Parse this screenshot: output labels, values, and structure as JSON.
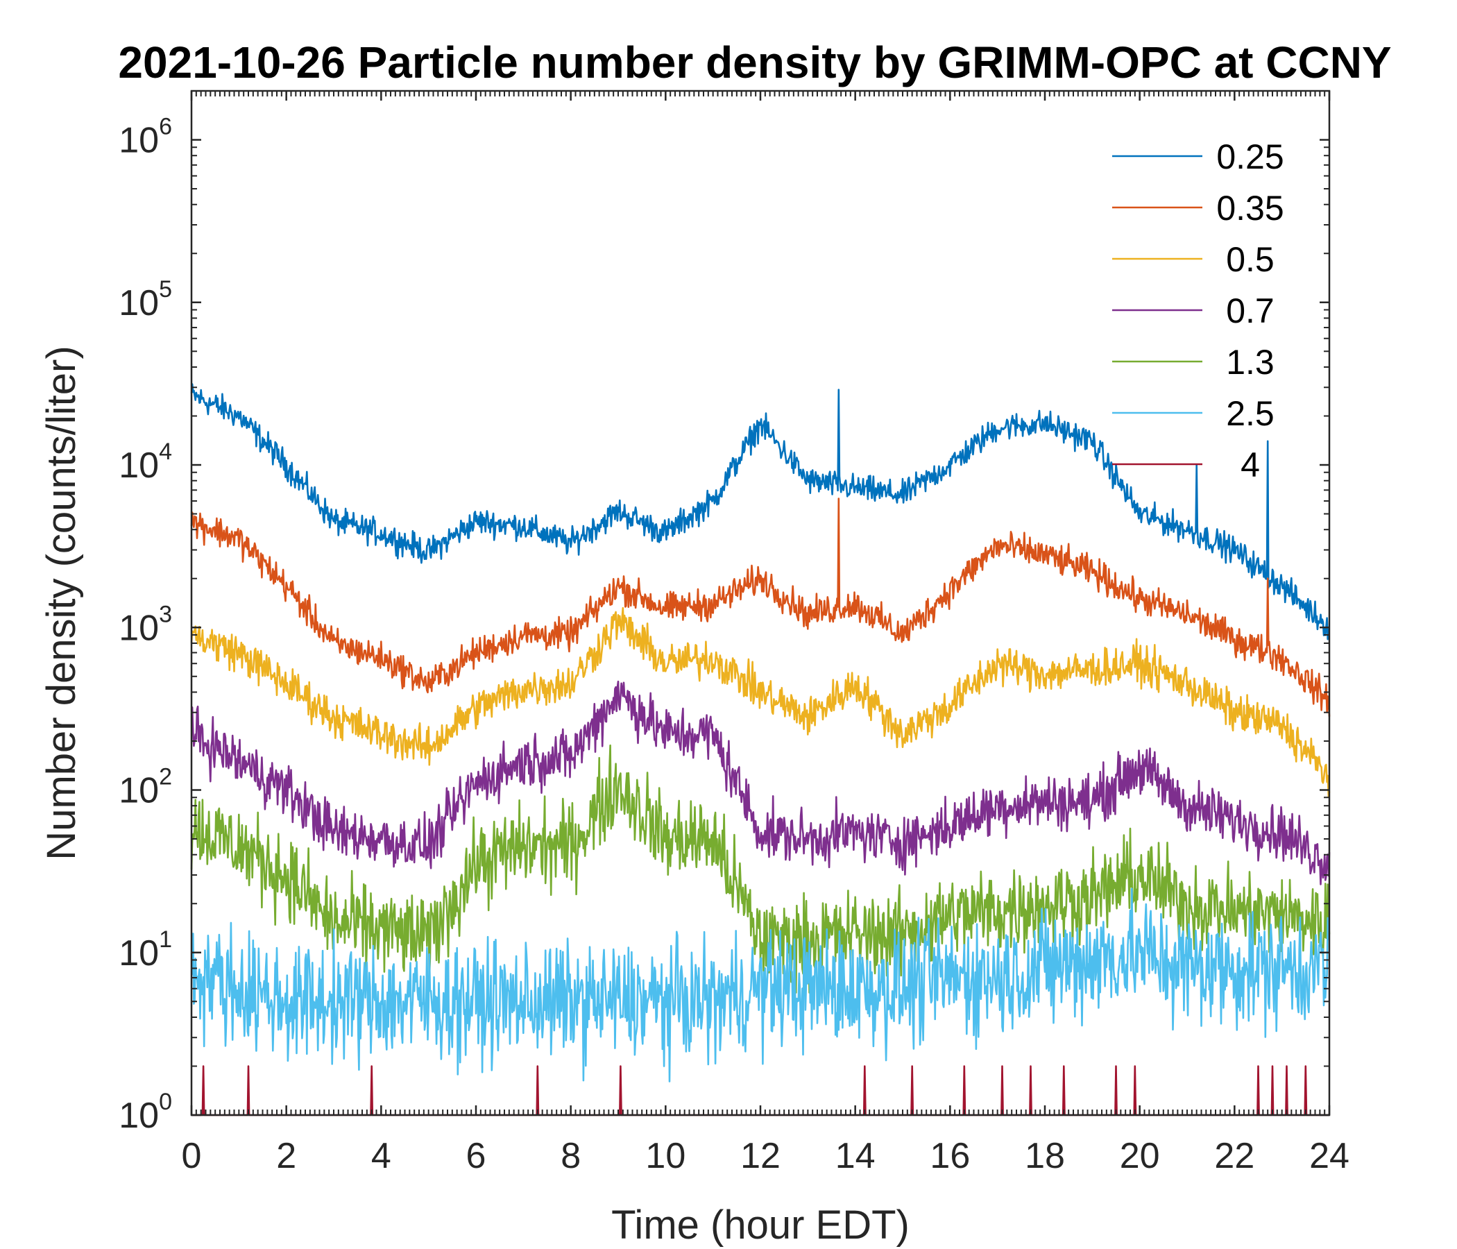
{
  "chart_data": {
    "type": "line",
    "title": "2021-10-26 Particle number density by GRIMM-OPC at CCNY",
    "xlabel": "Time (hour EDT)",
    "ylabel": "Number density (counts/liter)",
    "yscale": "log",
    "xlim": [
      0,
      24
    ],
    "ylim": [
      1,
      2000000
    ],
    "x_ticks": [
      0,
      2,
      4,
      6,
      8,
      10,
      12,
      14,
      16,
      18,
      20,
      22,
      24
    ],
    "y_ticks": [
      {
        "base": "10",
        "exp": "0",
        "value": 1
      },
      {
        "base": "10",
        "exp": "1",
        "value": 10
      },
      {
        "base": "10",
        "exp": "2",
        "value": 100
      },
      {
        "base": "10",
        "exp": "3",
        "value": 1000
      },
      {
        "base": "10",
        "exp": "4",
        "value": 10000
      },
      {
        "base": "10",
        "exp": "5",
        "value": 100000
      },
      {
        "base": "10",
        "exp": "6",
        "value": 1000000
      }
    ],
    "legend_position": "top-right",
    "x": [
      0,
      1,
      2,
      3,
      4,
      5,
      6,
      7,
      8,
      9,
      10,
      11,
      12,
      13,
      14,
      15,
      16,
      17,
      18,
      19,
      20,
      21,
      22,
      23,
      24
    ],
    "series": [
      {
        "name": "0.25",
        "color": "#0072BD",
        "noise": 0.07,
        "values": [
          27000,
          20000,
          10000,
          4500,
          3800,
          2900,
          4500,
          4200,
          3300,
          5200,
          3800,
          6000,
          18000,
          8000,
          7200,
          6500,
          10000,
          17000,
          18000,
          14000,
          5000,
          4000,
          3000,
          1800,
          1000
        ],
        "spikes": [
          [
            13.65,
            29000
          ],
          [
            22.7,
            14000
          ],
          [
            21.2,
            10000
          ]
        ]
      },
      {
        "name": "0.35",
        "color": "#D95319",
        "noise": 0.08,
        "values": [
          4500,
          3500,
          1800,
          800,
          650,
          450,
          700,
          900,
          900,
          1800,
          1300,
          1400,
          2000,
          1200,
          1400,
          900,
          1700,
          3200,
          2800,
          2200,
          1500,
          1200,
          850,
          650,
          350
        ],
        "spikes": [
          [
            13.65,
            6200
          ],
          [
            22.7,
            2000
          ]
        ]
      },
      {
        "name": "0.5",
        "color": "#EDB120",
        "noise": 0.1,
        "values": [
          900,
          700,
          450,
          280,
          220,
          180,
          320,
          420,
          450,
          1100,
          600,
          650,
          400,
          280,
          450,
          220,
          330,
          600,
          520,
          550,
          600,
          450,
          300,
          250,
          120
        ],
        "spikes": [
          [
            2.8,
            75
          ]
        ]
      },
      {
        "name": "0.7",
        "color": "#7E2F8E",
        "noise": 0.14,
        "values": [
          220,
          150,
          100,
          55,
          50,
          45,
          110,
          150,
          160,
          400,
          220,
          220,
          55,
          50,
          55,
          48,
          60,
          80,
          85,
          85,
          140,
          80,
          65,
          55,
          35
        ],
        "spikes": []
      },
      {
        "name": "1.3",
        "color": "#77AC30",
        "noise": 0.22,
        "values": [
          60,
          45,
          30,
          15,
          14,
          12,
          35,
          45,
          45,
          110,
          50,
          50,
          12,
          12,
          13,
          13,
          17,
          18,
          20,
          22,
          30,
          20,
          18,
          17,
          15
        ],
        "spikes": []
      },
      {
        "name": "2.5",
        "color": "#4DBEEE",
        "noise": 0.3,
        "values": [
          8,
          6,
          5,
          5,
          5,
          5,
          5,
          5,
          5,
          5,
          5,
          5,
          6,
          6,
          6,
          6,
          7,
          7,
          8,
          9,
          10,
          8,
          8,
          8,
          8
        ],
        "spikes": []
      },
      {
        "name": "4",
        "color": "#A2142F",
        "noise": 0,
        "values": [
          1,
          1,
          1,
          1,
          1,
          1,
          1,
          1,
          1,
          1,
          1,
          1,
          1,
          1,
          1,
          1,
          1,
          1,
          1,
          1,
          1,
          1,
          1,
          1,
          1
        ],
        "spikes": [
          [
            0.25,
            2
          ],
          [
            1.2,
            2
          ],
          [
            3.8,
            2
          ],
          [
            7.3,
            2
          ],
          [
            9.05,
            2
          ],
          [
            14.2,
            2
          ],
          [
            15.2,
            2
          ],
          [
            16.3,
            2
          ],
          [
            17.1,
            2
          ],
          [
            17.7,
            2
          ],
          [
            18.4,
            2
          ],
          [
            19.5,
            2
          ],
          [
            19.9,
            2
          ],
          [
            22.5,
            2
          ],
          [
            22.8,
            2
          ],
          [
            23.1,
            2
          ],
          [
            23.5,
            2
          ]
        ]
      }
    ]
  }
}
